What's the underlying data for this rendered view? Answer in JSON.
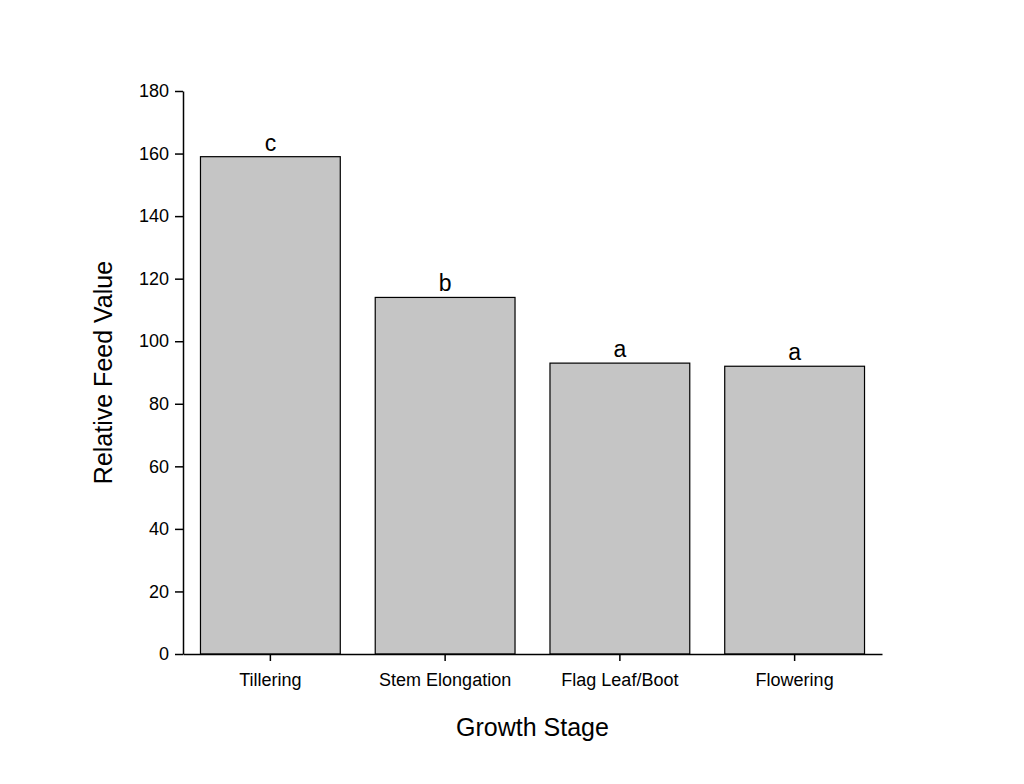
{
  "chart_data": {
    "type": "bar",
    "x_label": "Growth Stage",
    "y_label": "Relative Feed Value",
    "categories": [
      "Tillering",
      "Stem Elongation",
      "Flag Leaf/Boot",
      "Flowering"
    ],
    "values": [
      159,
      114,
      93,
      92
    ],
    "annotations": [
      "c",
      "b",
      "a",
      "a"
    ],
    "color": "#c5c5c5",
    "ylim": [
      0,
      180
    ],
    "yticks": [
      0,
      20,
      40,
      60,
      80,
      100,
      120,
      140,
      160,
      180
    ],
    "grid": false
  }
}
